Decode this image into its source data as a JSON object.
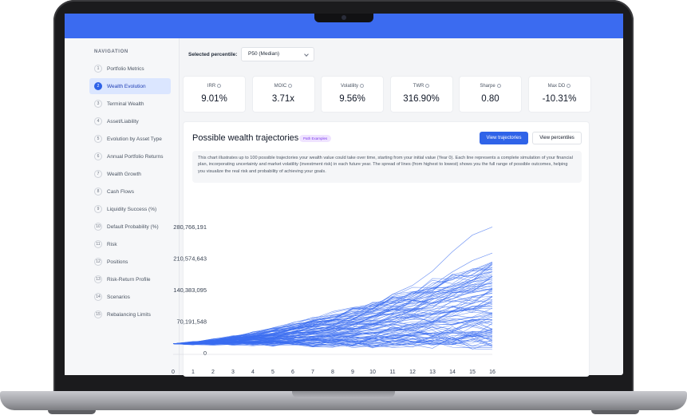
{
  "sidebar": {
    "title": "NAVIGATION",
    "items": [
      {
        "num": "1",
        "label": "Portfolio Metrics",
        "active": false
      },
      {
        "num": "2",
        "label": "Wealth Evolution",
        "active": true
      },
      {
        "num": "3",
        "label": "Terminal Wealth",
        "active": false
      },
      {
        "num": "4",
        "label": "Asset/Liability",
        "active": false
      },
      {
        "num": "5",
        "label": "Evolution by Asset Type",
        "active": false
      },
      {
        "num": "6",
        "label": "Annual Portfolio Returns",
        "active": false
      },
      {
        "num": "7",
        "label": "Wealth Growth",
        "active": false
      },
      {
        "num": "8",
        "label": "Cash Flows",
        "active": false
      },
      {
        "num": "9",
        "label": "Liquidity Success (%)",
        "active": false
      },
      {
        "num": "10",
        "label": "Default Probability (%)",
        "active": false
      },
      {
        "num": "11",
        "label": "Risk",
        "active": false
      },
      {
        "num": "12",
        "label": "Positions",
        "active": false
      },
      {
        "num": "13",
        "label": "Risk-Return Profile",
        "active": false
      },
      {
        "num": "14",
        "label": "Scenarios",
        "active": false
      },
      {
        "num": "15",
        "label": "Rebalancing Limits",
        "active": false
      }
    ]
  },
  "percentile": {
    "label": "Selected percentile:",
    "value": "P50 (Median)"
  },
  "metrics": [
    {
      "label": "IRR",
      "value": "9.01%"
    },
    {
      "label": "MOIC",
      "value": "3.71x"
    },
    {
      "label": "Volatility",
      "value": "9.56%"
    },
    {
      "label": "TWR",
      "value": "316.90%"
    },
    {
      "label": "Sharpe",
      "value": "0.80"
    },
    {
      "label": "Max DD",
      "value": "-10.31%"
    }
  ],
  "panel": {
    "title": "Possible wealth trajectories",
    "badge": "Path Examples",
    "btn_trajectories": "View trajectories",
    "btn_percentiles": "View percentiles",
    "description": "This chart illustrates up to 100 possible trajectories your wealth value could take over time, starting from your initial value (Year 0). Each line represents a complete simulation of your financial plan, incorporating uncertainty and market volatility (investment risk) in each future year. The spread of lines (from highest to lowest) shows you the full range of possible outcomes, helping you visualize the real risk and probability of achieving your goals."
  },
  "colors": {
    "accent": "#2f63e8",
    "header": "#3b6bf0",
    "line": "#3a6cf0"
  },
  "chart_data": {
    "type": "line",
    "x": [
      0,
      1,
      2,
      3,
      4,
      5,
      6,
      7,
      8,
      9,
      10,
      11,
      12,
      13,
      14,
      15,
      16
    ],
    "xticks": [
      "0",
      "1",
      "2",
      "3",
      "4",
      "5",
      "6",
      "7",
      "8",
      "9",
      "10",
      "11",
      "12",
      "13",
      "14",
      "15",
      "16"
    ],
    "yticks": [
      "0",
      "70,191,548",
      "140,383,095",
      "210,574,643",
      "280,766,191"
    ],
    "ylim": [
      0,
      280766191
    ],
    "series_count": 100,
    "highlight_series": [
      {
        "values": [
          20000000,
          24500000,
          28000000,
          31500000,
          35000000,
          40000000,
          46000000,
          52000000,
          60000000,
          75000000,
          98000000,
          130000000,
          150000000,
          182000000,
          225000000,
          262000000,
          280000000
        ]
      },
      {
        "values": [
          20000000,
          23000000,
          26500000,
          30000000,
          34000000,
          38000000,
          41000000,
          47000000,
          53000000,
          61000000,
          80000000,
          105000000,
          125000000,
          150000000,
          180000000,
          205000000,
          222000000
        ]
      },
      {
        "values": [
          20000000,
          22500000,
          25500000,
          28500000,
          31000000,
          34500000,
          37000000,
          42000000,
          47000000,
          53000000,
          62000000,
          78000000,
          95000000,
          118000000,
          140000000,
          162000000,
          180000000
        ]
      }
    ],
    "median_end": 82000000,
    "low_end": 22000000,
    "high_end": 205000000
  }
}
